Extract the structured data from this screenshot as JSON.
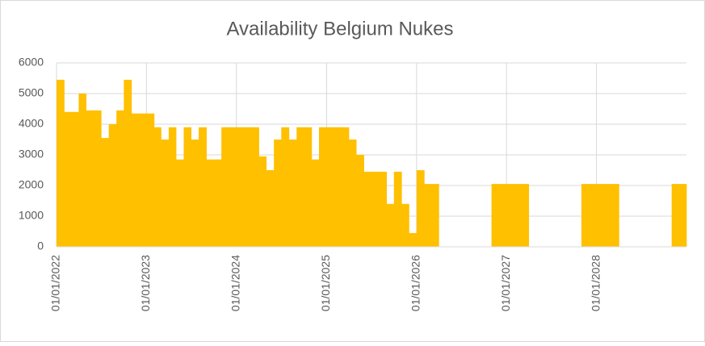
{
  "chart_data": {
    "type": "bar",
    "title": "Availability Belgium Nukes",
    "x": [
      "01/01/2022",
      "01/02/2022",
      "01/03/2022",
      "01/04/2022",
      "01/05/2022",
      "01/06/2022",
      "01/07/2022",
      "01/08/2022",
      "01/09/2022",
      "01/10/2022",
      "01/11/2022",
      "01/12/2022",
      "01/01/2023",
      "01/02/2023",
      "01/03/2023",
      "01/04/2023",
      "01/05/2023",
      "01/06/2023",
      "01/07/2023",
      "01/08/2023",
      "01/09/2023",
      "01/10/2023",
      "01/11/2023",
      "01/12/2023",
      "01/01/2024",
      "01/02/2024",
      "01/03/2024",
      "01/04/2024",
      "01/05/2024",
      "01/06/2024",
      "01/07/2024",
      "01/08/2024",
      "01/09/2024",
      "01/10/2024",
      "01/11/2024",
      "01/12/2024",
      "01/01/2025",
      "01/02/2025",
      "01/03/2025",
      "01/04/2025",
      "01/05/2025",
      "01/06/2025",
      "01/07/2025",
      "01/08/2025",
      "01/09/2025",
      "01/10/2025",
      "01/11/2025",
      "01/12/2025",
      "01/01/2026",
      "01/02/2026",
      "01/03/2026",
      "01/04/2026",
      "01/05/2026",
      "01/06/2026",
      "01/07/2026",
      "01/08/2026",
      "01/09/2026",
      "01/10/2026",
      "01/11/2026",
      "01/12/2026",
      "01/01/2027",
      "01/02/2027",
      "01/03/2027",
      "01/04/2027",
      "01/05/2027",
      "01/06/2027",
      "01/07/2027",
      "01/08/2027",
      "01/09/2027",
      "01/10/2027",
      "01/11/2027",
      "01/12/2027",
      "01/01/2028",
      "01/02/2028",
      "01/03/2028",
      "01/04/2028",
      "01/05/2028",
      "01/06/2028",
      "01/07/2028",
      "01/08/2028",
      "01/09/2028",
      "01/10/2028",
      "01/11/2028",
      "01/12/2028"
    ],
    "values": [
      5450,
      4400,
      4400,
      5000,
      4450,
      4450,
      3550,
      4000,
      4450,
      5450,
      4350,
      4350,
      4350,
      3900,
      3500,
      3900,
      2850,
      3900,
      3500,
      3900,
      2850,
      2850,
      3900,
      3900,
      3900,
      3900,
      3900,
      2950,
      2500,
      3500,
      3900,
      3500,
      3900,
      3900,
      2850,
      3900,
      3900,
      3900,
      3900,
      3500,
      3000,
      2450,
      2450,
      2450,
      1400,
      2450,
      1400,
      450,
      2500,
      2050,
      2050,
      0,
      0,
      0,
      0,
      0,
      0,
      0,
      2050,
      2050,
      2050,
      2050,
      2050,
      0,
      0,
      0,
      0,
      0,
      0,
      0,
      2050,
      2050,
      2050,
      2050,
      2050,
      0,
      0,
      0,
      0,
      0,
      0,
      0,
      2050,
      2050
    ],
    "color": "#ffc000",
    "xlim": [
      "01/01/2022",
      "31/12/2028"
    ],
    "xticks": [
      "01/01/2022",
      "01/01/2023",
      "01/01/2024",
      "01/01/2025",
      "01/01/2026",
      "01/01/2027",
      "01/01/2028"
    ],
    "ylim": [
      0,
      6000
    ],
    "yticks": [
      0,
      1000,
      2000,
      3000,
      4000,
      5000,
      6000
    ],
    "grid": true
  }
}
